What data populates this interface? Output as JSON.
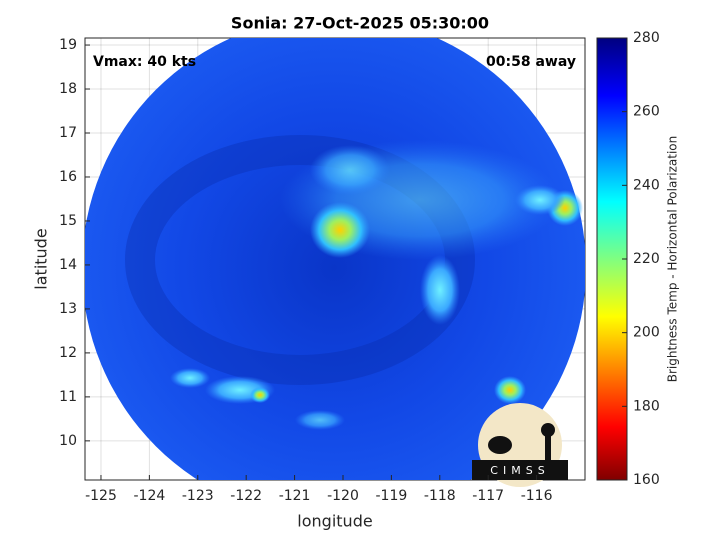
{
  "map": {
    "title": "Sonia: 27-Oct-2025 05:30:00",
    "xlabel": "longitude",
    "ylabel": "latitude",
    "xlim": [
      -125.33,
      -115
    ],
    "ylim": [
      9.11,
      19.16
    ],
    "xticks": [
      -125,
      -124,
      -123,
      -122,
      -121,
      -120,
      -119,
      -118,
      -117,
      -116
    ],
    "yticks": [
      10,
      11,
      12,
      13,
      14,
      15,
      16,
      17,
      18,
      19
    ],
    "grid": true,
    "annotations": {
      "left": "Vmax: 40 kts",
      "right": "00:58 away"
    },
    "colorbar": {
      "label": "Brightness Temp - Horizontal Polarization",
      "lim": [
        160,
        280
      ],
      "ticks": [
        160,
        180,
        200,
        220,
        240,
        260,
        280
      ]
    },
    "logo": "CIMSS"
  }
}
